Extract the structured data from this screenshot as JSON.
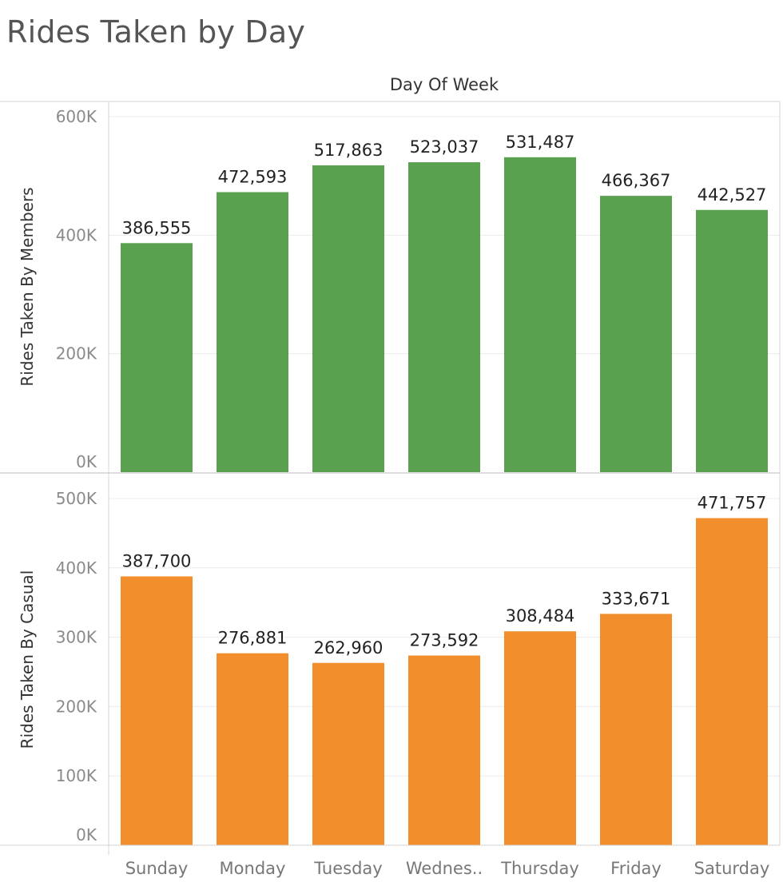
{
  "page": {
    "title": "Rides Taken by Day",
    "column_header": "Day Of Week"
  },
  "colors": {
    "members": "#59a14f",
    "casual": "#f28e2b",
    "gridline": "#ececec",
    "border": "#d4d4d4"
  },
  "chart_data": [
    {
      "type": "bar",
      "categories": [
        "Sunday",
        "Monday",
        "Tuesday",
        "Wednes..",
        "Thursday",
        "Friday",
        "Saturday"
      ],
      "values": [
        386555,
        472593,
        517863,
        523037,
        531487,
        466367,
        442527
      ],
      "value_labels": [
        "386,555",
        "472,593",
        "517,863",
        "523,037",
        "531,487",
        "466,367",
        "442,527"
      ],
      "ylabel": "Rides Taken By Members",
      "ylim": [
        0,
        600000
      ],
      "yticks": [
        0,
        200000,
        400000,
        600000
      ],
      "ytick_labels": [
        "0K",
        "200K",
        "400K",
        "600K"
      ],
      "grid": true
    },
    {
      "type": "bar",
      "categories": [
        "Sunday",
        "Monday",
        "Tuesday",
        "Wednes..",
        "Thursday",
        "Friday",
        "Saturday"
      ],
      "values": [
        387700,
        276881,
        262960,
        273592,
        308484,
        333671,
        471757
      ],
      "value_labels": [
        "387,700",
        "276,881",
        "262,960",
        "273,592",
        "308,484",
        "333,671",
        "471,757"
      ],
      "ylabel": "Rides Taken By Casual",
      "ylim": [
        0,
        500000
      ],
      "yticks": [
        0,
        100000,
        200000,
        300000,
        400000,
        500000
      ],
      "ytick_labels": [
        "0K",
        "100K",
        "200K",
        "300K",
        "400K",
        "500K"
      ],
      "grid": true
    }
  ]
}
